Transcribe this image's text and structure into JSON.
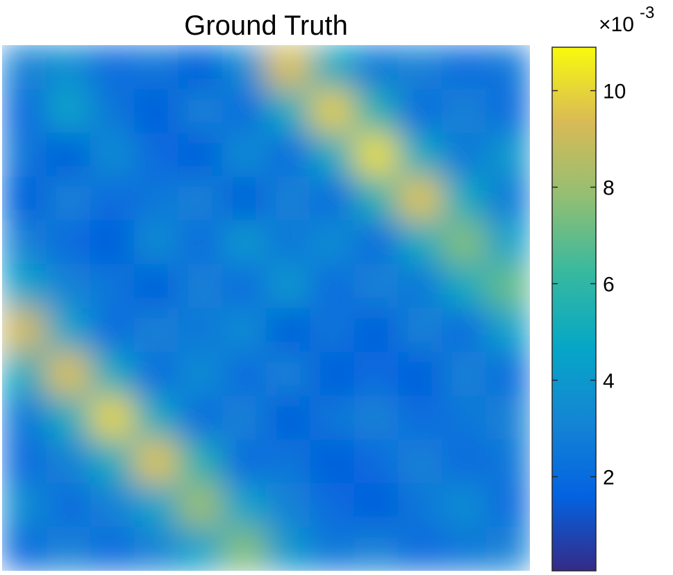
{
  "chart_data": {
    "type": "heatmap",
    "title": "Ground Truth",
    "colorbar_multiplier": "×10",
    "colorbar_exponent": "-3",
    "clim": [
      0.05,
      10.9
    ],
    "colorbar_ticks": [
      2,
      4,
      6,
      8,
      10
    ],
    "colors": [
      "#352A87",
      "#0363E1",
      "#1485D4",
      "#06A7C6",
      "#38B99E",
      "#92BF73",
      "#D9BA56",
      "#F8FA0D"
    ],
    "z": [
      [
        3.0,
        3.5,
        2.0,
        2.5,
        1.5,
        3.5,
        9.5,
        5.0,
        2.5,
        3.0,
        2.0,
        2.5
      ],
      [
        2.0,
        4.5,
        2.5,
        1.5,
        3.0,
        2.0,
        5.0,
        9.8,
        5.5,
        2.0,
        3.0,
        2.0
      ],
      [
        2.5,
        1.5,
        3.5,
        2.0,
        1.5,
        3.5,
        2.0,
        5.0,
        10.2,
        5.0,
        2.5,
        4.0
      ],
      [
        1.5,
        3.0,
        2.0,
        2.5,
        3.0,
        1.5,
        3.0,
        2.0,
        5.5,
        9.6,
        5.0,
        2.5
      ],
      [
        3.0,
        2.0,
        1.5,
        3.5,
        2.0,
        4.0,
        2.5,
        3.5,
        2.0,
        5.0,
        7.5,
        4.5
      ],
      [
        4.5,
        3.0,
        2.5,
        1.5,
        3.0,
        2.0,
        4.0,
        2.0,
        3.0,
        2.5,
        5.0,
        7.0
      ],
      [
        9.2,
        4.5,
        2.0,
        3.0,
        2.5,
        3.5,
        1.5,
        2.5,
        1.5,
        3.0,
        2.0,
        4.5
      ],
      [
        5.0,
        9.5,
        5.0,
        2.0,
        3.5,
        2.0,
        3.0,
        1.5,
        2.0,
        1.5,
        3.0,
        2.0
      ],
      [
        2.5,
        5.0,
        10.0,
        5.0,
        2.0,
        3.0,
        1.5,
        2.5,
        3.0,
        2.0,
        2.5,
        3.0
      ],
      [
        2.0,
        3.0,
        5.0,
        9.6,
        5.5,
        2.0,
        2.5,
        1.5,
        2.0,
        3.0,
        2.0,
        2.5
      ],
      [
        3.5,
        2.0,
        3.0,
        4.5,
        8.0,
        4.5,
        3.0,
        2.0,
        1.5,
        2.5,
        3.5,
        2.0
      ],
      [
        2.0,
        3.0,
        2.0,
        3.0,
        4.5,
        7.5,
        4.0,
        2.5,
        3.0,
        2.0,
        2.5,
        3.0
      ]
    ]
  }
}
